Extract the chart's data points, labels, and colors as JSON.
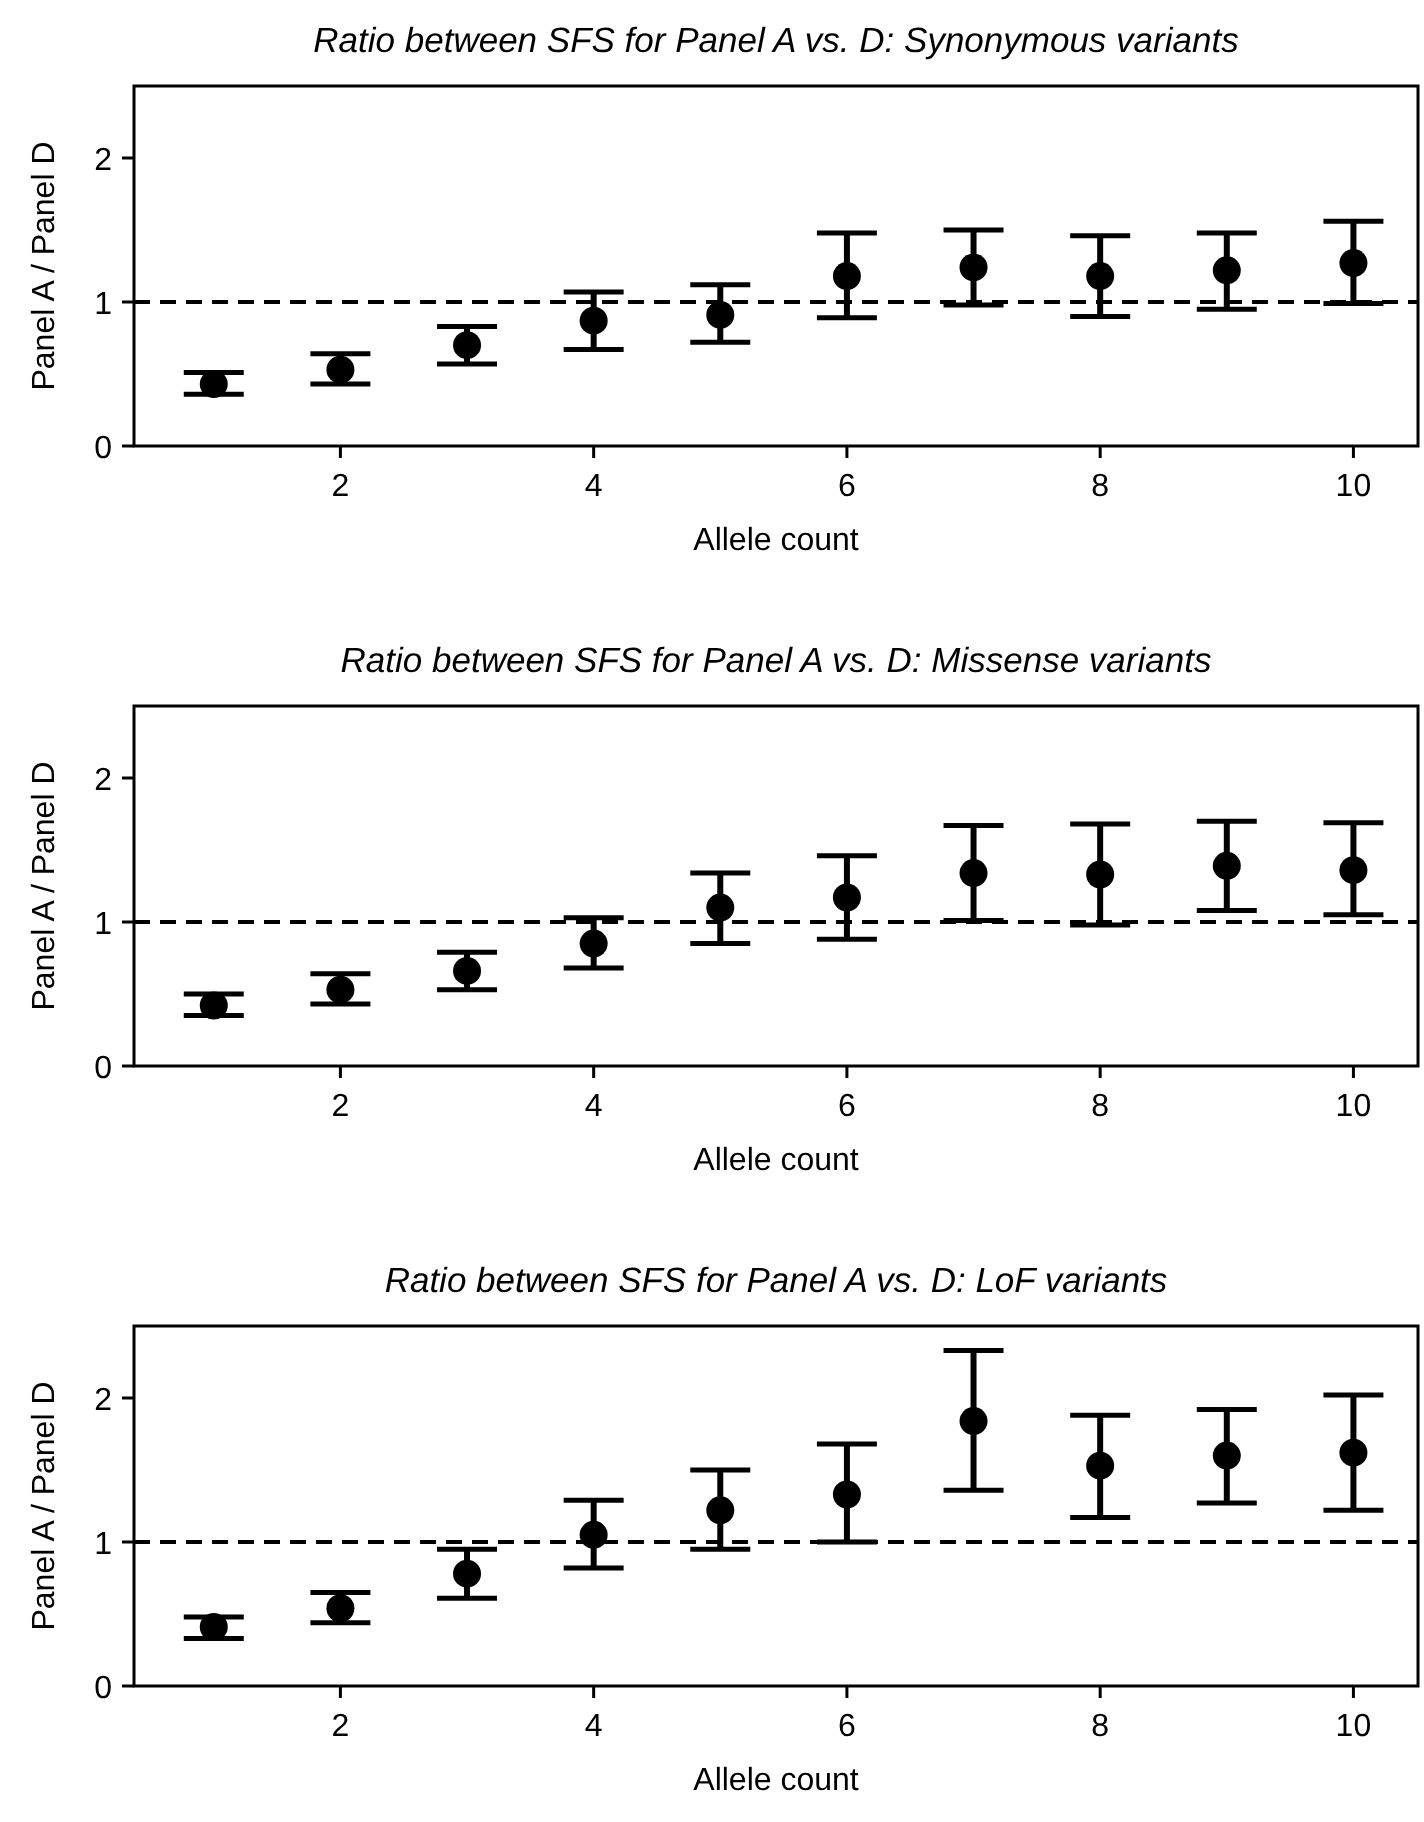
{
  "chart_data": [
    {
      "type": "scatter",
      "title": "Ratio between SFS for Panel A vs. D: Synonymous variants",
      "xlabel": "Allele count",
      "ylabel": "Panel A / Panel D",
      "marker": "circle",
      "color": "#000000",
      "x": [
        1,
        2,
        3,
        4,
        5,
        6,
        7,
        8,
        9,
        10
      ],
      "values": [
        0.43,
        0.53,
        0.7,
        0.87,
        0.91,
        1.18,
        1.24,
        1.18,
        1.22,
        1.27
      ],
      "errors": [
        [
          0.36,
          0.51
        ],
        [
          0.43,
          0.64
        ],
        [
          0.57,
          0.83
        ],
        [
          0.67,
          1.07
        ],
        [
          0.72,
          1.12
        ],
        [
          0.89,
          1.48
        ],
        [
          0.98,
          1.5
        ],
        [
          0.9,
          1.46
        ],
        [
          0.95,
          1.48
        ],
        [
          0.99,
          1.56
        ]
      ],
      "xlim": [
        0.37,
        10.51
      ],
      "ylim": [
        0,
        2.5
      ],
      "xticks": [
        2,
        4,
        6,
        8,
        10
      ],
      "yticks": [
        0,
        1,
        2
      ],
      "ref_lines": [
        {
          "axis": "y",
          "value": 1,
          "color": "#000000",
          "line_style": "dashed"
        }
      ]
    },
    {
      "type": "scatter",
      "title": "Ratio between SFS for Panel A vs. D: Missense variants",
      "xlabel": "Allele count",
      "ylabel": "Panel A / Panel D",
      "marker": "circle",
      "color": "#000000",
      "x": [
        1,
        2,
        3,
        4,
        5,
        6,
        7,
        8,
        9,
        10
      ],
      "values": [
        0.42,
        0.53,
        0.66,
        0.85,
        1.1,
        1.17,
        1.34,
        1.33,
        1.39,
        1.36
      ],
      "errors": [
        [
          0.35,
          0.5
        ],
        [
          0.43,
          0.64
        ],
        [
          0.53,
          0.79
        ],
        [
          0.68,
          1.03
        ],
        [
          0.85,
          1.34
        ],
        [
          0.88,
          1.46
        ],
        [
          1.01,
          1.67
        ],
        [
          0.98,
          1.68
        ],
        [
          1.08,
          1.7
        ],
        [
          1.05,
          1.69
        ]
      ],
      "xlim": [
        0.37,
        10.51
      ],
      "ylim": [
        0,
        2.5
      ],
      "xticks": [
        2,
        4,
        6,
        8,
        10
      ],
      "yticks": [
        0,
        1,
        2
      ],
      "ref_lines": [
        {
          "axis": "y",
          "value": 1,
          "color": "#000000",
          "line_style": "dashed"
        }
      ]
    },
    {
      "type": "scatter",
      "title": "Ratio between SFS for Panel A vs. D: LoF variants",
      "xlabel": "Allele count",
      "ylabel": "Panel A / Panel D",
      "marker": "circle",
      "color": "#000000",
      "x": [
        1,
        2,
        3,
        4,
        5,
        6,
        7,
        8,
        9,
        10
      ],
      "values": [
        0.41,
        0.54,
        0.78,
        1.05,
        1.22,
        1.33,
        1.84,
        1.53,
        1.6,
        1.62
      ],
      "errors": [
        [
          0.33,
          0.48
        ],
        [
          0.44,
          0.65
        ],
        [
          0.61,
          0.95
        ],
        [
          0.82,
          1.29
        ],
        [
          0.95,
          1.5
        ],
        [
          1.0,
          1.68
        ],
        [
          1.36,
          2.33
        ],
        [
          1.17,
          1.88
        ],
        [
          1.27,
          1.92
        ],
        [
          1.22,
          2.02
        ]
      ],
      "xlim": [
        0.37,
        10.51
      ],
      "ylim": [
        0,
        2.5
      ],
      "xticks": [
        2,
        4,
        6,
        8,
        10
      ],
      "yticks": [
        0,
        1,
        2
      ],
      "ref_lines": [
        {
          "axis": "y",
          "value": 1,
          "color": "#000000",
          "line_style": "dashed"
        }
      ]
    }
  ]
}
